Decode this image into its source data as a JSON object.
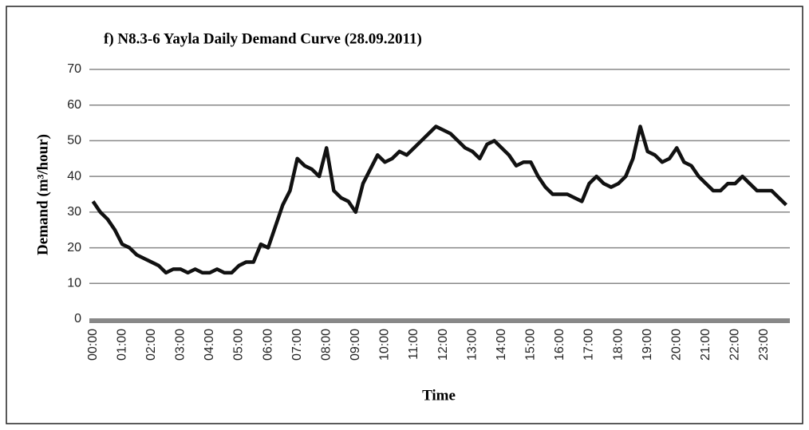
{
  "chart_data": {
    "type": "line",
    "title": "f) N8.3-6 Yayla Daily Demand Curve (28.09.2011)",
    "x_label": "Time",
    "y_label": "Demand (m³/hour)",
    "categories": [
      "00:00",
      null,
      null,
      null,
      "01:00",
      null,
      null,
      null,
      "02:00",
      null,
      null,
      null,
      "03:00",
      null,
      null,
      null,
      "04:00",
      null,
      null,
      null,
      "05:00",
      null,
      null,
      null,
      "06:00",
      null,
      null,
      null,
      "07:00",
      null,
      null,
      null,
      "08:00",
      null,
      null,
      null,
      "09:00",
      null,
      null,
      null,
      "10:00",
      null,
      null,
      null,
      "11:00",
      null,
      null,
      null,
      "12:00",
      null,
      null,
      null,
      "13:00",
      null,
      null,
      null,
      "14:00",
      null,
      null,
      null,
      "15:00",
      null,
      null,
      null,
      "16:00",
      null,
      null,
      null,
      "17:00",
      null,
      null,
      null,
      "18:00",
      null,
      null,
      null,
      "19:00",
      null,
      null,
      null,
      "20:00",
      null,
      null,
      null,
      "21:00",
      null,
      null,
      null,
      "22:00",
      null,
      null,
      null,
      "23:00",
      null,
      null,
      null
    ],
    "series": [
      {
        "name": "Demand",
        "color": "#111111",
        "values": [
          33,
          30,
          28,
          25,
          21,
          20,
          18,
          17,
          16,
          15,
          13,
          14,
          14,
          13,
          14,
          13,
          13,
          14,
          13,
          13,
          15,
          16,
          16,
          21,
          20,
          26,
          32,
          36,
          45,
          43,
          42,
          40,
          48,
          36,
          34,
          33,
          30,
          38,
          42,
          46,
          44,
          45,
          47,
          46,
          48,
          50,
          52,
          54,
          53,
          52,
          50,
          48,
          47,
          45,
          49,
          50,
          48,
          46,
          43,
          44,
          44,
          40,
          37,
          35,
          35,
          35,
          34,
          33,
          38,
          40,
          38,
          37,
          38,
          40,
          45,
          54,
          47,
          46,
          44,
          45,
          48,
          44,
          43,
          40,
          38,
          36,
          36,
          38,
          38,
          40,
          38,
          36,
          36,
          36,
          34,
          32
        ]
      }
    ],
    "ylim": [
      0,
      70
    ],
    "yticks": [
      0,
      10,
      20,
      30,
      40,
      50,
      60,
      70
    ],
    "grid": true
  }
}
